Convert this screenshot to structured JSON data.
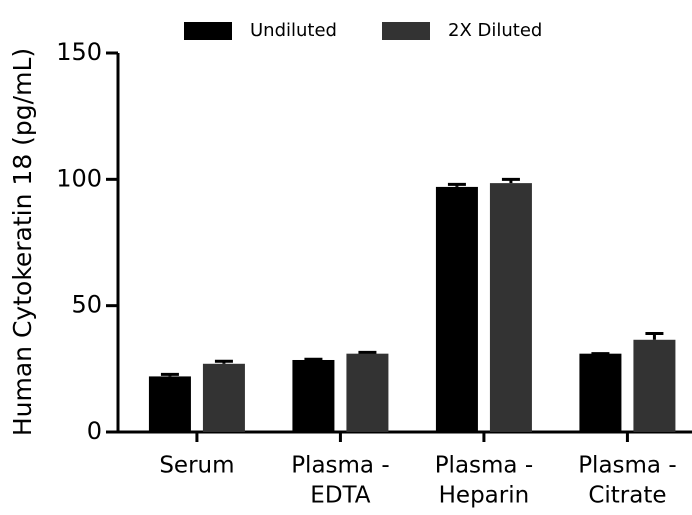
{
  "chart_data": {
    "type": "bar",
    "y_label": "Human Cytokeratin 18 (pg/mL)",
    "categories": [
      [
        "Serum"
      ],
      [
        "Plasma -",
        "EDTA"
      ],
      [
        "Plasma -",
        "Heparin"
      ],
      [
        "Plasma -",
        "Citrate"
      ]
    ],
    "series": [
      {
        "name": "Undiluted",
        "color": "#000000",
        "values": [
          22,
          28.5,
          97,
          31
        ],
        "errors": [
          0.8,
          0.3,
          1,
          0
        ]
      },
      {
        "name": "2X Diluted",
        "color": "#333333",
        "values": [
          27,
          31,
          98.5,
          36.5
        ],
        "errors": [
          1,
          0.5,
          1.5,
          2.5
        ]
      }
    ],
    "ylim": [
      0,
      150
    ],
    "yticks": [
      0,
      50,
      100,
      150
    ],
    "grid": false
  }
}
